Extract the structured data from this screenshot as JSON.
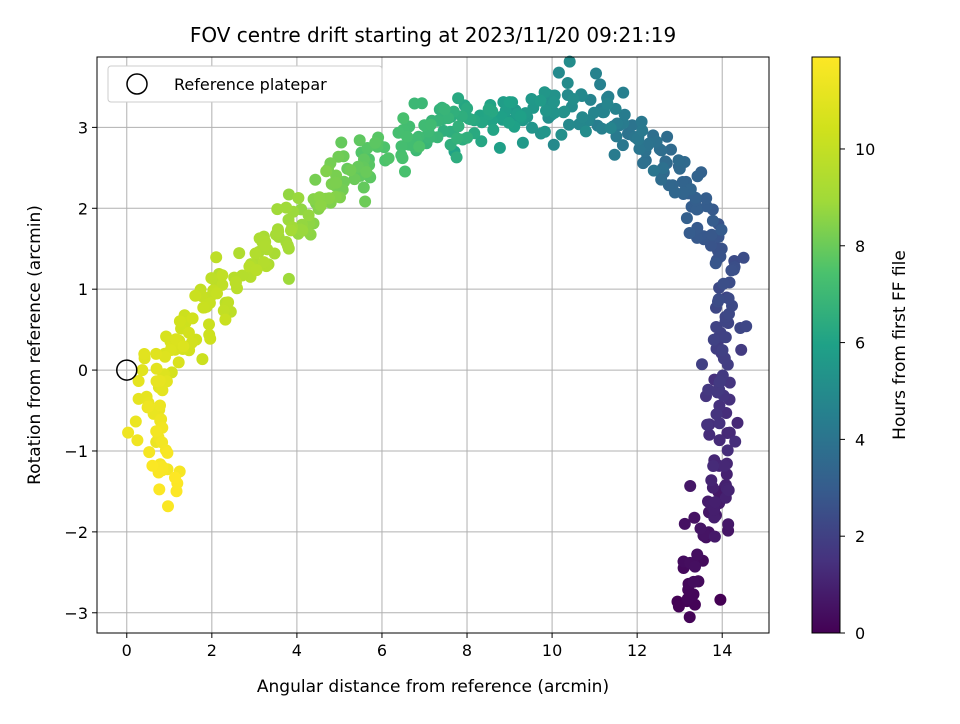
{
  "chart_data": {
    "type": "scatter",
    "title": "FOV centre drift starting at 2023/11/20 09:21:19",
    "xlabel": "Angular distance from reference (arcmin)",
    "ylabel": "Rotation from reference (arcmin)",
    "xlim": [
      -0.7,
      15.1
    ],
    "ylim": [
      -3.25,
      3.87
    ],
    "xticks": [
      0,
      2,
      4,
      6,
      8,
      10,
      12,
      14
    ],
    "yticks": [
      -3,
      -2,
      -1,
      0,
      1,
      2,
      3
    ],
    "xtick_labels": [
      "0",
      "2",
      "4",
      "6",
      "8",
      "10",
      "12",
      "14"
    ],
    "ytick_labels": [
      "−3",
      "−2",
      "−1",
      "0",
      "1",
      "2",
      "3"
    ],
    "grid": true,
    "legend": {
      "position": "top-left",
      "entries": [
        "Reference platepar"
      ]
    },
    "colorbar": {
      "label": "Hours from first FF file",
      "colormap": "viridis",
      "range": [
        0,
        11.9
      ],
      "ticks": [
        0,
        2,
        4,
        6,
        8,
        10
      ],
      "tick_labels": [
        "0",
        "2",
        "4",
        "6",
        "8",
        "10"
      ]
    },
    "reference_point": {
      "x": 0,
      "y": 0
    },
    "path": [
      [
        13.1,
        -2.9
      ],
      [
        13.4,
        -2.4
      ],
      [
        13.7,
        -1.9
      ],
      [
        13.9,
        -1.6
      ],
      [
        14.0,
        -1.2
      ],
      [
        13.95,
        -0.8
      ],
      [
        13.9,
        -0.4
      ],
      [
        13.9,
        0.0
      ],
      [
        13.95,
        0.4
      ],
      [
        14.05,
        0.75
      ],
      [
        14.1,
        1.05
      ],
      [
        13.9,
        1.45
      ],
      [
        13.6,
        1.85
      ],
      [
        13.2,
        2.3
      ],
      [
        12.8,
        2.55
      ],
      [
        12.3,
        2.7
      ],
      [
        11.8,
        2.95
      ],
      [
        11.3,
        3.25
      ],
      [
        10.7,
        3.35
      ],
      [
        10.1,
        3.3
      ],
      [
        9.5,
        3.15
      ],
      [
        8.8,
        3.1
      ],
      [
        8.1,
        3.05
      ],
      [
        7.4,
        3.05
      ],
      [
        6.8,
        2.95
      ],
      [
        6.2,
        2.8
      ],
      [
        5.6,
        2.5
      ],
      [
        5.0,
        2.3
      ],
      [
        4.4,
        2.0
      ],
      [
        3.8,
        1.75
      ],
      [
        3.2,
        1.45
      ],
      [
        2.6,
        1.15
      ],
      [
        2.0,
        0.8
      ],
      [
        1.5,
        0.45
      ],
      [
        1.0,
        0.15
      ],
      [
        0.6,
        -0.1
      ],
      [
        0.5,
        -0.5
      ],
      [
        0.6,
        -0.9
      ],
      [
        0.8,
        -1.2
      ],
      [
        1.05,
        -1.4
      ]
    ],
    "point_count": 520
  }
}
